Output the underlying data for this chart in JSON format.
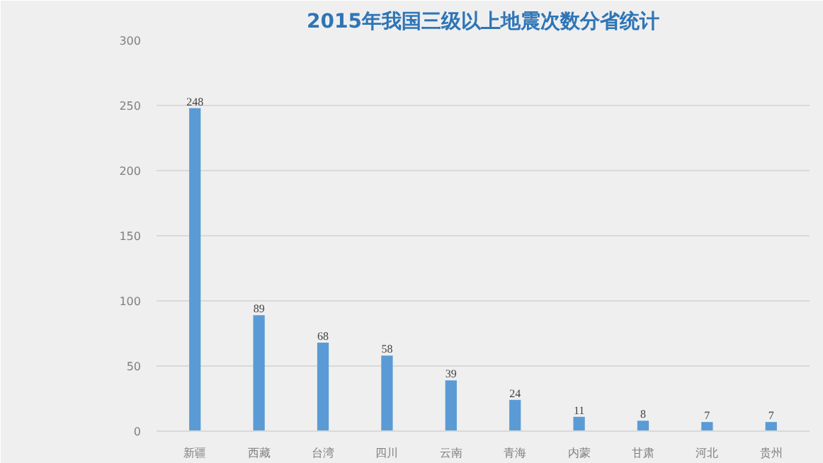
{
  "chart_data": {
    "type": "bar",
    "title": "2015年我国三级以上地震次数分省统计",
    "categories": [
      "新疆",
      "西藏",
      "台湾",
      "四川",
      "云南",
      "青海",
      "内蒙",
      "甘肃",
      "河北",
      "贵州"
    ],
    "values": [
      248,
      89,
      68,
      58,
      39,
      24,
      11,
      8,
      7,
      7
    ],
    "color": "#5b9bd5",
    "ylim": [
      0,
      300
    ],
    "yticks": [
      0,
      50,
      100,
      150,
      200,
      250,
      300
    ],
    "grid": "y",
    "data_labels": true
  }
}
